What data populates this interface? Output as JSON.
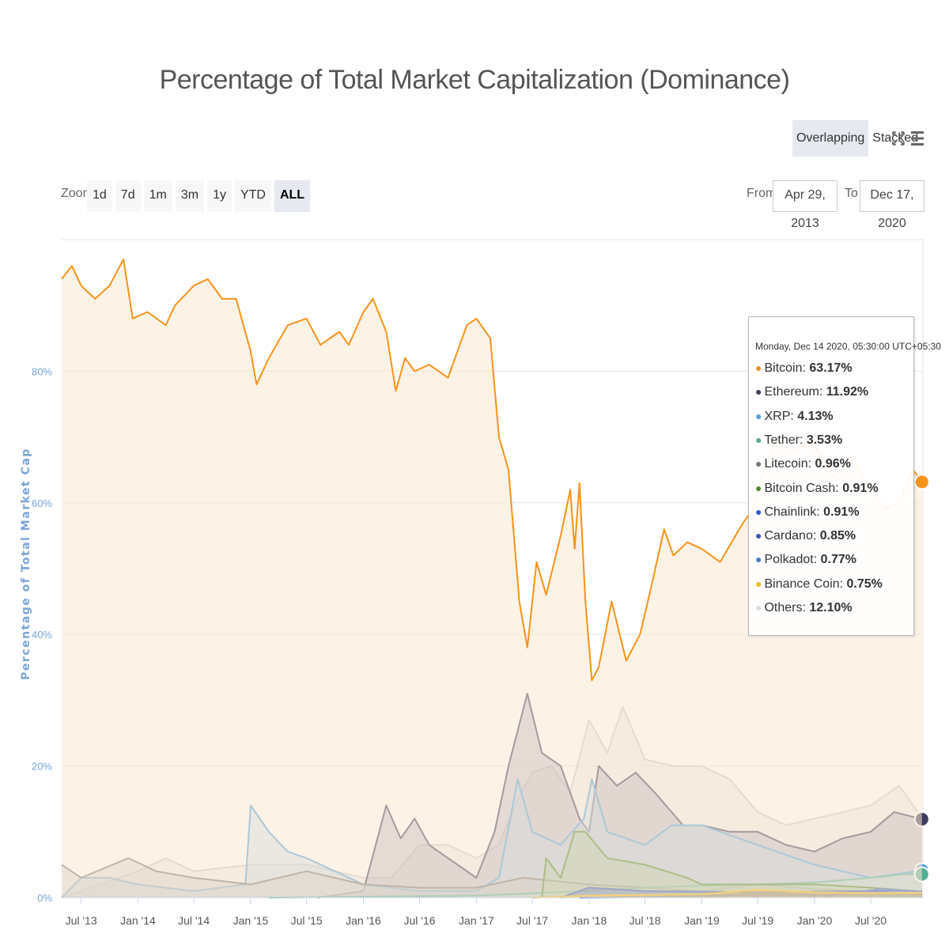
{
  "header": {
    "title": "Percentage of Total Market Capitalization (Dominance)",
    "view_modes": [
      {
        "label": "Overlapping",
        "active": true
      },
      {
        "label": "Stacked",
        "active": false
      }
    ],
    "fullscreen_icon": "fullscreen-icon",
    "menu_icon": "hamburger-menu-icon"
  },
  "range_selector": {
    "zoom_label": "Zoom",
    "buttons": [
      "1d",
      "7d",
      "1m",
      "3m",
      "1y",
      "YTD",
      "ALL"
    ],
    "active": "ALL",
    "from_label": "From",
    "from_value": "Apr 29, 2013",
    "to_label": "To",
    "to_value": "Dec 17, 2020"
  },
  "tooltip": {
    "date": "Monday, Dec 14 2020, 05:30:00 UTC+05:30",
    "rows": [
      {
        "name": "Bitcoin",
        "value": "63.17%",
        "color": "#f7931a"
      },
      {
        "name": "Ethereum",
        "value": "11.92%",
        "color": "#3c3c5d"
      },
      {
        "name": "XRP",
        "value": "4.13%",
        "color": "#4aa3df"
      },
      {
        "name": "Tether",
        "value": "3.53%",
        "color": "#50af95"
      },
      {
        "name": "Litecoin",
        "value": "0.96%",
        "color": "#777777"
      },
      {
        "name": "Bitcoin Cash",
        "value": "0.91%",
        "color": "#4c8c2b"
      },
      {
        "name": "Chainlink",
        "value": "0.91%",
        "color": "#2a5ada"
      },
      {
        "name": "Cardano",
        "value": "0.85%",
        "color": "#3355bb"
      },
      {
        "name": "Polkadot",
        "value": "0.77%",
        "color": "#3d7fc8"
      },
      {
        "name": "Binance Coin",
        "value": "0.75%",
        "color": "#f0b90b"
      },
      {
        "name": "Others",
        "value": "12.10%",
        "color": "#dddddd"
      }
    ]
  },
  "chart_data": {
    "type": "area",
    "title": "Percentage of Total Market Capitalization (Dominance)",
    "ylabel": "Percentage of Total Market Cap",
    "xlabel": "",
    "ylim": [
      0,
      100
    ],
    "yticks": [
      "0%",
      "20%",
      "40%",
      "60%",
      "80%"
    ],
    "ytick_values": [
      0,
      20,
      40,
      60,
      80
    ],
    "xticks": [
      "Jul '13",
      "Jan '14",
      "Jul '14",
      "Jan '15",
      "Jul '15",
      "Jan '16",
      "Jul '16",
      "Jan '17",
      "Jul '17",
      "Jan '18",
      "Jul '18",
      "Jan '19",
      "Jul '19",
      "Jan '20",
      "Jul '20"
    ],
    "xtick_dates": [
      "2013-07-01",
      "2014-01-01",
      "2014-07-01",
      "2015-01-01",
      "2015-07-01",
      "2016-01-01",
      "2016-07-01",
      "2017-01-01",
      "2017-07-01",
      "2018-01-01",
      "2018-07-01",
      "2019-01-01",
      "2019-07-01",
      "2020-01-01",
      "2020-07-01"
    ],
    "xlim": [
      "2013-04-29",
      "2020-12-17"
    ],
    "grid": true,
    "series": [
      {
        "name": "Others",
        "color": "#cccccc",
        "fill": "#dddddd",
        "points": [
          [
            "2013-04-29",
            0
          ],
          [
            "2013-07-01",
            1
          ],
          [
            "2014-01-01",
            4
          ],
          [
            "2014-04-01",
            6
          ],
          [
            "2014-07-01",
            4
          ],
          [
            "2015-01-01",
            5
          ],
          [
            "2015-07-01",
            5
          ],
          [
            "2016-01-01",
            3
          ],
          [
            "2016-04-01",
            3
          ],
          [
            "2016-07-01",
            8
          ],
          [
            "2016-10-01",
            8
          ],
          [
            "2017-01-01",
            6
          ],
          [
            "2017-03-15",
            8
          ],
          [
            "2017-05-15",
            15
          ],
          [
            "2017-07-01",
            19
          ],
          [
            "2017-09-01",
            20
          ],
          [
            "2017-11-01",
            16
          ],
          [
            "2018-01-01",
            27
          ],
          [
            "2018-03-01",
            22
          ],
          [
            "2018-04-20",
            29
          ],
          [
            "2018-07-01",
            21
          ],
          [
            "2018-10-01",
            20
          ],
          [
            "2019-01-01",
            20
          ],
          [
            "2019-04-01",
            18
          ],
          [
            "2019-07-01",
            13
          ],
          [
            "2019-10-01",
            11
          ],
          [
            "2020-01-01",
            12
          ],
          [
            "2020-04-01",
            13
          ],
          [
            "2020-07-01",
            14
          ],
          [
            "2020-10-01",
            17
          ],
          [
            "2020-12-14",
            12.1
          ]
        ]
      },
      {
        "name": "Ethereum",
        "color": "#3c3c5d",
        "fill": "#8a8aa6",
        "points": [
          [
            "2015-08-07",
            0
          ],
          [
            "2016-01-01",
            1
          ],
          [
            "2016-03-15",
            14
          ],
          [
            "2016-05-01",
            9
          ],
          [
            "2016-06-15",
            12
          ],
          [
            "2016-08-01",
            8
          ],
          [
            "2016-10-01",
            6
          ],
          [
            "2017-01-01",
            3
          ],
          [
            "2017-03-01",
            10
          ],
          [
            "2017-04-15",
            20
          ],
          [
            "2017-06-15",
            31
          ],
          [
            "2017-08-01",
            22
          ],
          [
            "2017-10-01",
            20
          ],
          [
            "2017-12-01",
            12
          ],
          [
            "2018-01-01",
            10
          ],
          [
            "2018-02-01",
            20
          ],
          [
            "2018-04-01",
            17
          ],
          [
            "2018-06-01",
            19
          ],
          [
            "2018-08-01",
            16
          ],
          [
            "2018-11-01",
            11
          ],
          [
            "2019-01-01",
            11
          ],
          [
            "2019-04-01",
            10
          ],
          [
            "2019-07-01",
            10
          ],
          [
            "2019-10-01",
            8
          ],
          [
            "2020-01-01",
            7
          ],
          [
            "2020-04-01",
            9
          ],
          [
            "2020-07-01",
            10
          ],
          [
            "2020-09-15",
            13
          ],
          [
            "2020-12-14",
            11.92
          ]
        ]
      },
      {
        "name": "XRP",
        "color": "#4aa3df",
        "fill": "#a6cfe8",
        "points": [
          [
            "2013-04-29",
            0
          ],
          [
            "2013-07-01",
            3
          ],
          [
            "2013-10-01",
            3
          ],
          [
            "2014-01-01",
            2
          ],
          [
            "2014-07-01",
            1
          ],
          [
            "2014-12-15",
            2
          ],
          [
            "2015-01-01",
            14
          ],
          [
            "2015-03-01",
            10
          ],
          [
            "2015-05-01",
            7
          ],
          [
            "2015-07-01",
            6
          ],
          [
            "2015-10-01",
            4
          ],
          [
            "2016-01-01",
            2
          ],
          [
            "2016-07-01",
            1
          ],
          [
            "2017-01-01",
            1
          ],
          [
            "2017-03-15",
            3
          ],
          [
            "2017-05-15",
            18
          ],
          [
            "2017-07-01",
            10
          ],
          [
            "2017-10-01",
            8
          ],
          [
            "2017-12-15",
            12
          ],
          [
            "2018-01-10",
            18
          ],
          [
            "2018-03-01",
            10
          ],
          [
            "2018-07-01",
            8
          ],
          [
            "2018-09-25",
            11
          ],
          [
            "2019-01-01",
            11
          ],
          [
            "2019-07-01",
            8
          ],
          [
            "2020-01-01",
            5
          ],
          [
            "2020-07-01",
            3
          ],
          [
            "2020-11-25",
            4
          ],
          [
            "2020-12-14",
            4.13
          ]
        ]
      },
      {
        "name": "Litecoin",
        "color": "#777777",
        "fill": "#bbbbbb",
        "points": [
          [
            "2013-04-29",
            5
          ],
          [
            "2013-07-01",
            3
          ],
          [
            "2013-12-01",
            6
          ],
          [
            "2014-03-01",
            4
          ],
          [
            "2014-07-01",
            3
          ],
          [
            "2015-01-01",
            2
          ],
          [
            "2015-07-01",
            4
          ],
          [
            "2016-01-01",
            2
          ],
          [
            "2016-07-01",
            1.5
          ],
          [
            "2017-01-01",
            1.5
          ],
          [
            "2017-06-01",
            3
          ],
          [
            "2018-01-01",
            2
          ],
          [
            "2018-07-01",
            1.5
          ],
          [
            "2019-01-01",
            1
          ],
          [
            "2019-07-01",
            2
          ],
          [
            "2020-01-01",
            1.3
          ],
          [
            "2020-07-01",
            1
          ],
          [
            "2020-12-14",
            0.96
          ]
        ]
      },
      {
        "name": "Tether",
        "color": "#50af95",
        "fill": "#b3dccc",
        "points": [
          [
            "2015-03-01",
            0
          ],
          [
            "2017-01-01",
            0.3
          ],
          [
            "2018-01-01",
            1
          ],
          [
            "2018-07-01",
            1.5
          ],
          [
            "2019-01-01",
            1.8
          ],
          [
            "2019-07-01",
            2
          ],
          [
            "2020-01-01",
            2.3
          ],
          [
            "2020-07-01",
            3
          ],
          [
            "2020-11-01",
            3.6
          ],
          [
            "2020-12-14",
            3.53
          ]
        ]
      },
      {
        "name": "Bitcoin Cash",
        "color": "#4c8c2b",
        "fill": "#9cc288",
        "points": [
          [
            "2017-08-01",
            0
          ],
          [
            "2017-08-15",
            6
          ],
          [
            "2017-10-01",
            3
          ],
          [
            "2017-11-15",
            10
          ],
          [
            "2017-12-20",
            10
          ],
          [
            "2018-03-01",
            6
          ],
          [
            "2018-07-01",
            5
          ],
          [
            "2018-11-15",
            3
          ],
          [
            "2019-01-01",
            2
          ],
          [
            "2019-07-01",
            2
          ],
          [
            "2020-01-01",
            2
          ],
          [
            "2020-07-01",
            1.5
          ],
          [
            "2020-12-14",
            0.91
          ]
        ]
      },
      {
        "name": "Chainlink",
        "color": "#2a5ada",
        "fill": "#2a5ada",
        "points": [
          [
            "2017-12-01",
            0
          ],
          [
            "2018-07-01",
            0.1
          ],
          [
            "2019-07-01",
            0.5
          ],
          [
            "2020-03-01",
            0.4
          ],
          [
            "2020-08-01",
            1.3
          ],
          [
            "2020-12-14",
            0.91
          ]
        ]
      },
      {
        "name": "Cardano",
        "color": "#3355bb",
        "fill": "#3355bb",
        "points": [
          [
            "2017-10-01",
            0
          ],
          [
            "2018-01-01",
            1.5
          ],
          [
            "2018-07-01",
            1
          ],
          [
            "2019-07-01",
            0.8
          ],
          [
            "2020-07-01",
            1
          ],
          [
            "2020-12-14",
            0.85
          ]
        ]
      },
      {
        "name": "Polkadot",
        "color": "#3d7fc8",
        "fill": "#3d7fc8",
        "points": [
          [
            "2020-08-20",
            0
          ],
          [
            "2020-09-01",
            0.9
          ],
          [
            "2020-12-14",
            0.77
          ]
        ]
      },
      {
        "name": "Binance Coin",
        "color": "#f0b90b",
        "fill": "#f0b90b",
        "points": [
          [
            "2017-07-01",
            0
          ],
          [
            "2018-01-01",
            0.3
          ],
          [
            "2019-01-01",
            0.5
          ],
          [
            "2019-07-01",
            1.2
          ],
          [
            "2020-01-01",
            0.8
          ],
          [
            "2020-07-01",
            0.7
          ],
          [
            "2020-12-14",
            0.75
          ]
        ]
      },
      {
        "name": "Bitcoin",
        "color": "#f7931a",
        "fill": "#fbe7d2",
        "points": [
          [
            "2013-04-29",
            94
          ],
          [
            "2013-06-01",
            96
          ],
          [
            "2013-07-01",
            93
          ],
          [
            "2013-08-15",
            91
          ],
          [
            "2013-10-01",
            93
          ],
          [
            "2013-11-15",
            97
          ],
          [
            "2013-12-15",
            88
          ],
          [
            "2014-02-01",
            89
          ],
          [
            "2014-04-01",
            87
          ],
          [
            "2014-05-01",
            90
          ],
          [
            "2014-07-01",
            93
          ],
          [
            "2014-08-15",
            94
          ],
          [
            "2014-10-01",
            91
          ],
          [
            "2014-11-15",
            91
          ],
          [
            "2015-01-01",
            83
          ],
          [
            "2015-01-20",
            78
          ],
          [
            "2015-03-01",
            82
          ],
          [
            "2015-05-01",
            87
          ],
          [
            "2015-07-01",
            88
          ],
          [
            "2015-08-15",
            84
          ],
          [
            "2015-10-15",
            86
          ],
          [
            "2015-11-15",
            84
          ],
          [
            "2016-01-01",
            89
          ],
          [
            "2016-02-01",
            91
          ],
          [
            "2016-03-15",
            86
          ],
          [
            "2016-04-15",
            77
          ],
          [
            "2016-05-15",
            82
          ],
          [
            "2016-06-15",
            80
          ],
          [
            "2016-08-01",
            81
          ],
          [
            "2016-10-01",
            79
          ],
          [
            "2016-12-01",
            87
          ],
          [
            "2017-01-01",
            88
          ],
          [
            "2017-02-15",
            85
          ],
          [
            "2017-03-15",
            70
          ],
          [
            "2017-04-15",
            65
          ],
          [
            "2017-05-20",
            45
          ],
          [
            "2017-06-15",
            38
          ],
          [
            "2017-07-15",
            51
          ],
          [
            "2017-08-15",
            46
          ],
          [
            "2017-10-01",
            55
          ],
          [
            "2017-11-01",
            62
          ],
          [
            "2017-11-15",
            53
          ],
          [
            "2017-12-01",
            63
          ],
          [
            "2017-12-20",
            45
          ],
          [
            "2018-01-10",
            33
          ],
          [
            "2018-02-01",
            35
          ],
          [
            "2018-03-15",
            45
          ],
          [
            "2018-05-01",
            36
          ],
          [
            "2018-06-15",
            40
          ],
          [
            "2018-07-15",
            46
          ],
          [
            "2018-09-01",
            56
          ],
          [
            "2018-10-01",
            52
          ],
          [
            "2018-11-15",
            54
          ],
          [
            "2019-01-01",
            53
          ],
          [
            "2019-03-01",
            51
          ],
          [
            "2019-05-15",
            57
          ],
          [
            "2019-06-15",
            59
          ],
          [
            "2019-07-15",
            64
          ],
          [
            "2019-09-01",
            70
          ],
          [
            "2019-10-15",
            68
          ],
          [
            "2020-01-01",
            69
          ],
          [
            "2020-03-01",
            64
          ],
          [
            "2020-05-01",
            67
          ],
          [
            "2020-07-01",
            62
          ],
          [
            "2020-08-15",
            59
          ],
          [
            "2020-10-01",
            60
          ],
          [
            "2020-11-15",
            65
          ],
          [
            "2020-12-14",
            63.17
          ]
        ]
      }
    ]
  }
}
